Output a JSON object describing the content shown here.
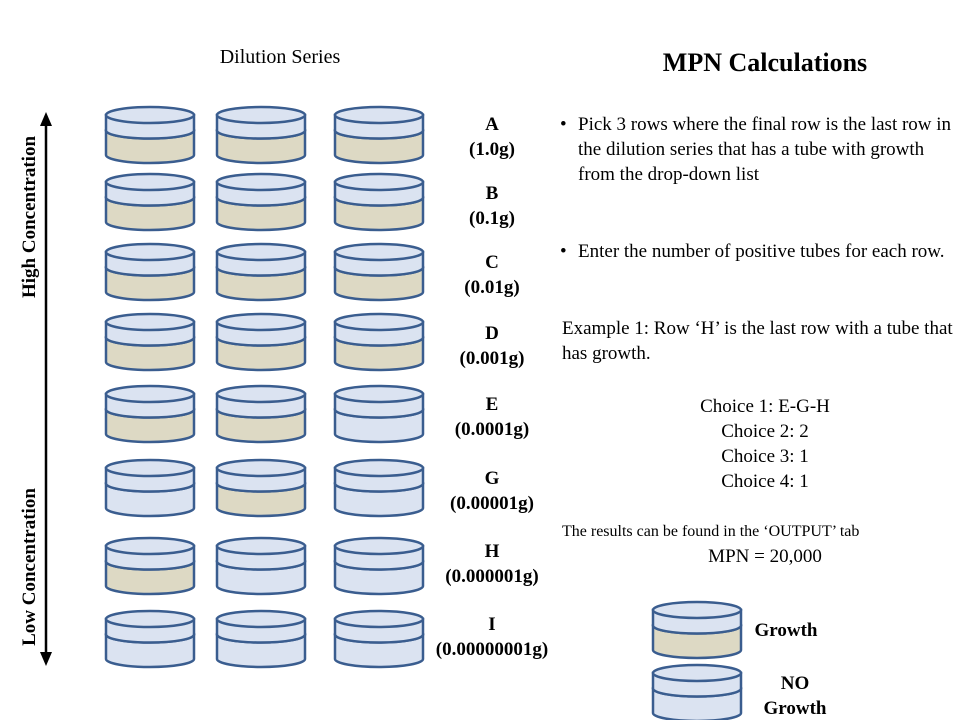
{
  "left_panel": {
    "title": "Dilution Series",
    "high_label": "High Concentration",
    "low_label": "Low Concentration",
    "rows": [
      {
        "letter": "A",
        "amount": "(1.0g)",
        "growth": [
          true,
          true,
          true
        ]
      },
      {
        "letter": "B",
        "amount": "(0.1g)",
        "growth": [
          true,
          true,
          true
        ]
      },
      {
        "letter": "C",
        "amount": "(0.01g)",
        "growth": [
          true,
          true,
          true
        ]
      },
      {
        "letter": "D",
        "amount": "(0.001g)",
        "growth": [
          true,
          true,
          true
        ]
      },
      {
        "letter": "E",
        "amount": "(0.0001g)",
        "growth": [
          true,
          true,
          false
        ]
      },
      {
        "letter": "G",
        "amount": "(0.00001g)",
        "growth": [
          false,
          true,
          false
        ]
      },
      {
        "letter": "H",
        "amount": "(0.000001g)",
        "growth": [
          true,
          false,
          false
        ]
      },
      {
        "letter": "I",
        "amount": "(0.00000001g)",
        "growth": [
          false,
          false,
          false
        ]
      }
    ]
  },
  "right_panel": {
    "title": "MPN Calculations",
    "bullets": [
      "Pick 3 rows where the final row is the last row in the dilution series that has a tube with growth from the drop-down list",
      "Enter the number of positive tubes for each row."
    ],
    "example": "Example 1:  Row ‘H’ is the last row with a tube that has growth.",
    "choices": [
      "Choice 1: E-G-H",
      "Choice 2: 2",
      "Choice 3: 1",
      "Choice 4: 1"
    ],
    "note": "The results can be found in the ‘OUTPUT’ tab",
    "result": "MPN = 20,000"
  },
  "legend": {
    "growth_label": "Growth",
    "no_growth_label_1": "NO",
    "no_growth_label_2": "Growth"
  },
  "colors": {
    "outline": "#3a5d8f",
    "lid": "#dbe3f1",
    "growth_fill": "#ddd9c4",
    "no_growth_fill": "#dbe3f1",
    "arrow": "#000000"
  }
}
